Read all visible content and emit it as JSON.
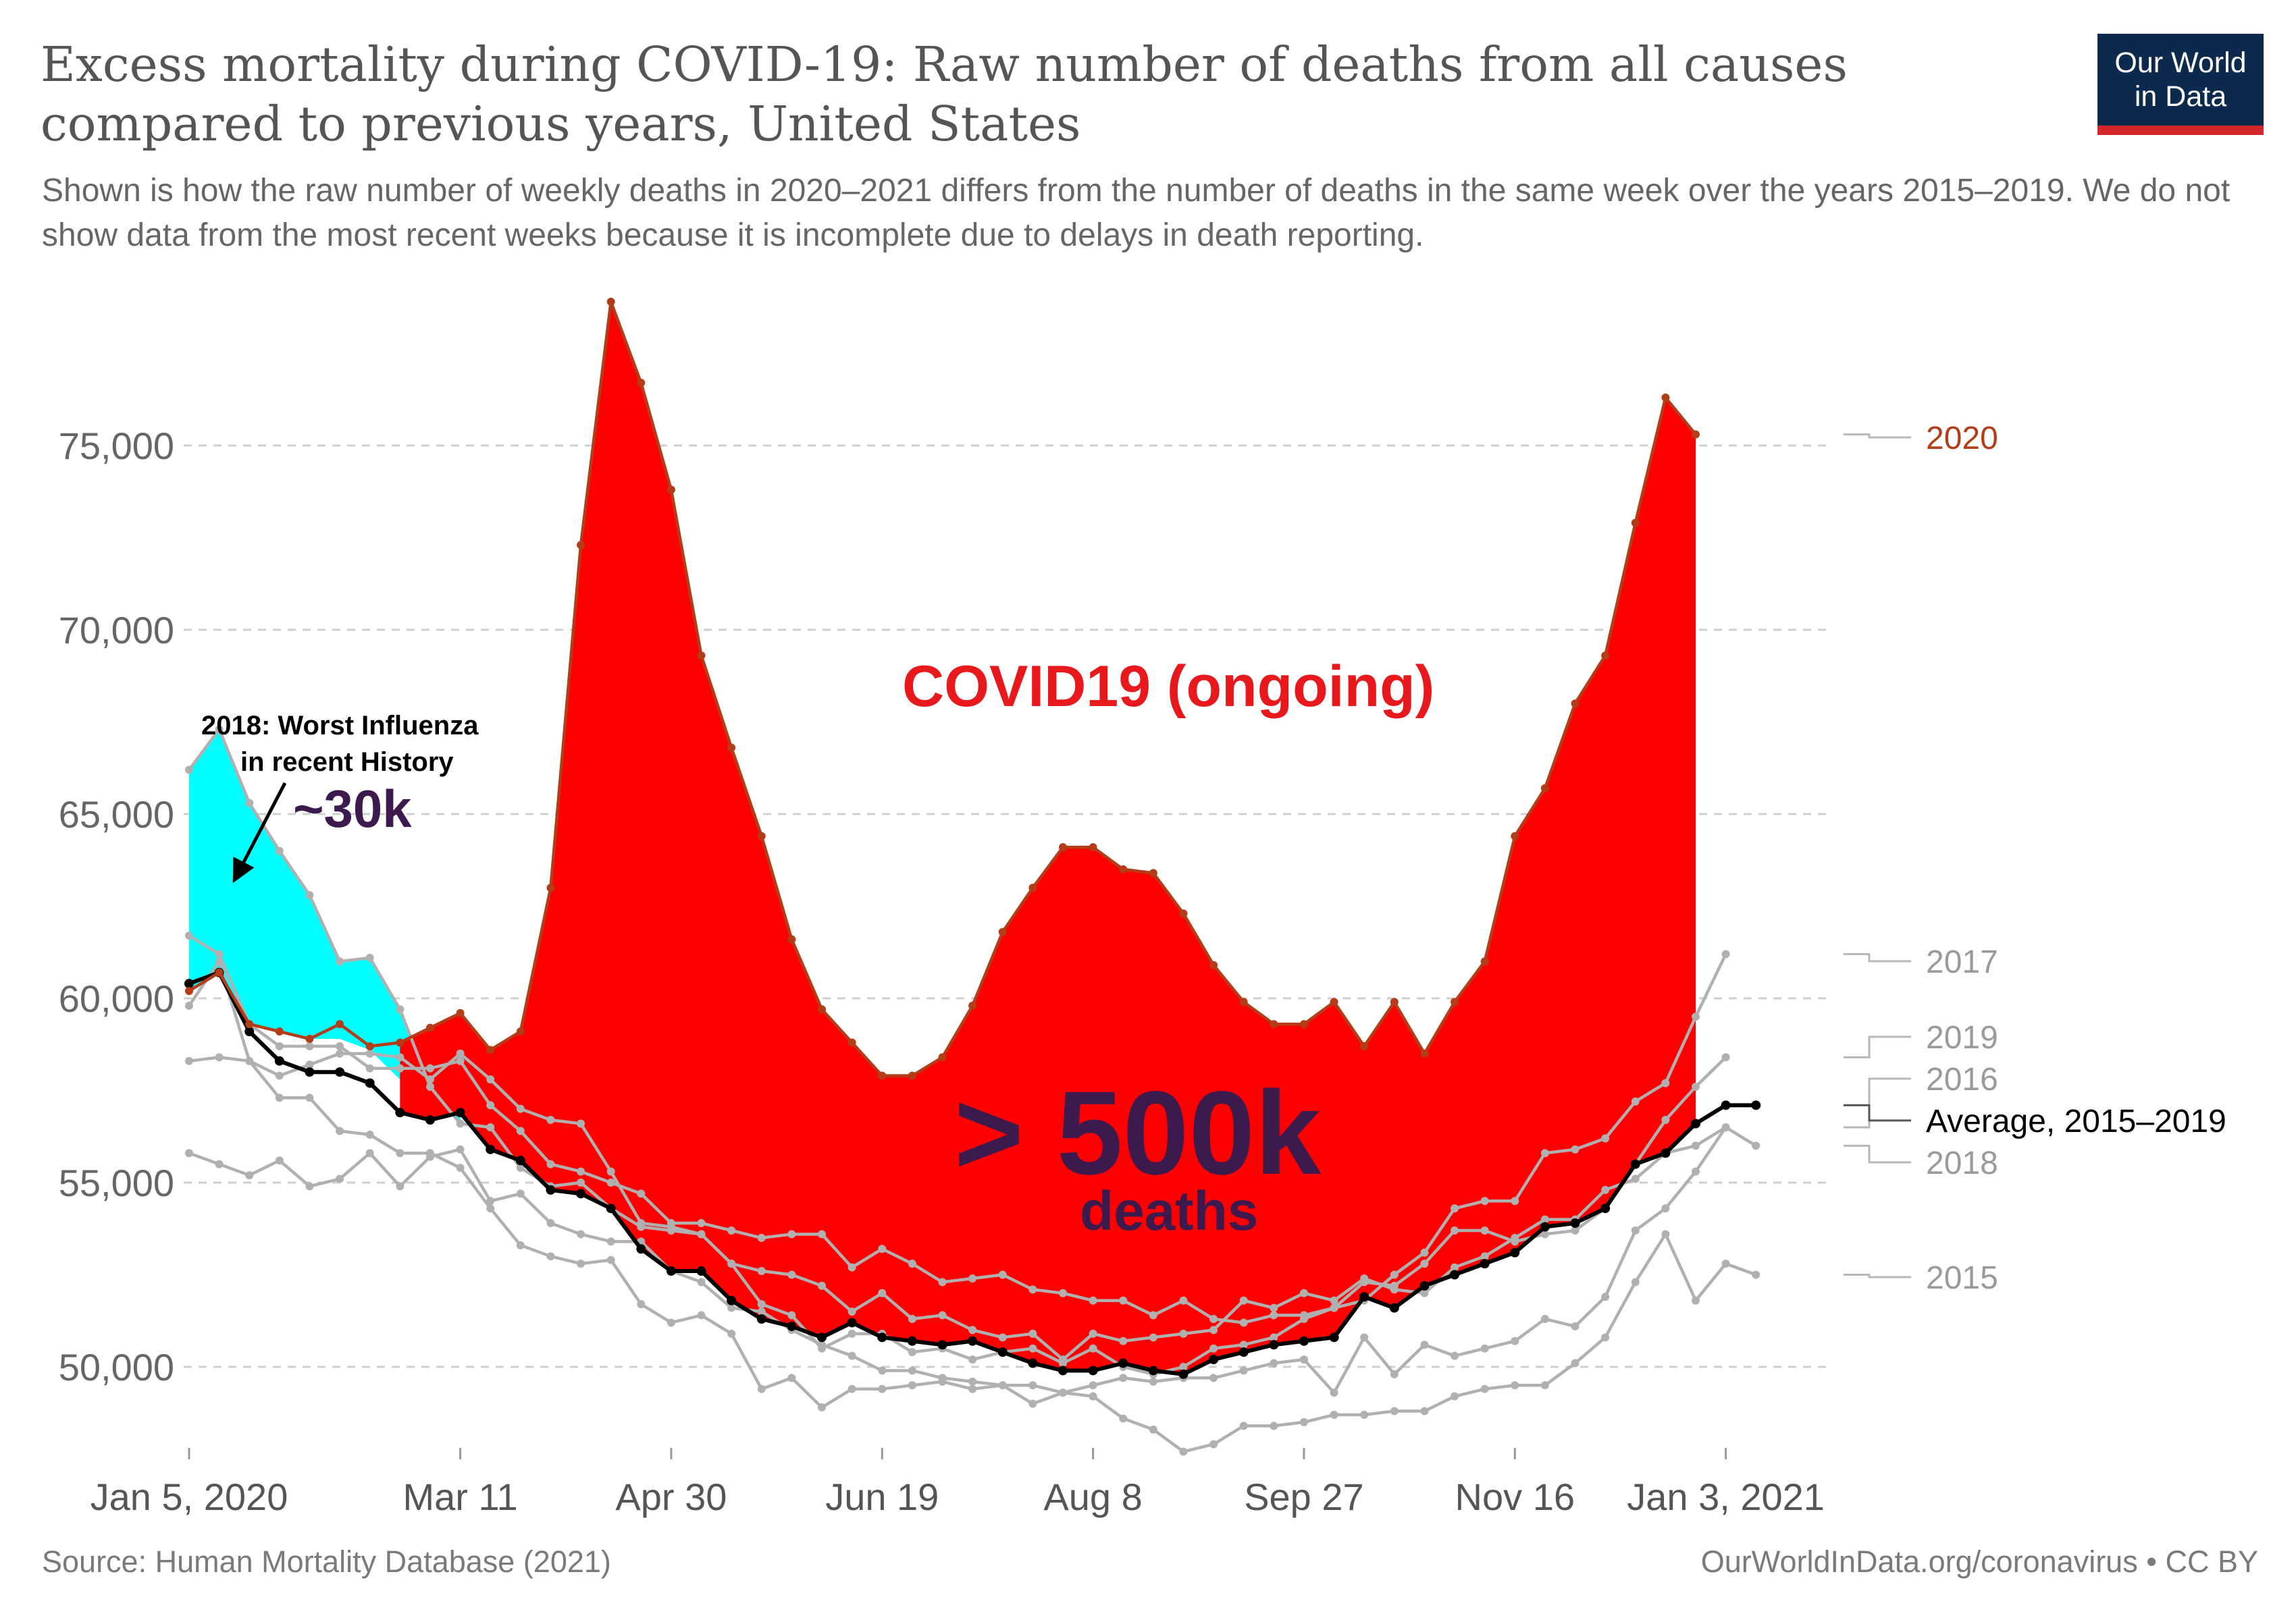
{
  "header": {
    "title": "Excess mortality during COVID-19: Raw number of deaths from all causes compared to previous years, United States",
    "subtitle": "Shown is how the raw number of weekly deaths in 2020–2021 differs from the number of deaths in the same week over the years 2015–2019. We do not show data from the most recent weeks because it is incomplete due to delays in death reporting.",
    "logo_line1": "Our World",
    "logo_line2": "in Data"
  },
  "footer": {
    "source": "Source: Human Mortality Database (2021)",
    "credit": "OurWorldInData.org/coronavirus • CC BY"
  },
  "colors": {
    "series_2020": "#b33d18",
    "other_years": "#b0b0b0",
    "average": "#000000",
    "excess_fill": "#ff0000",
    "flu_fill": "#00ffff",
    "big_label": "#3d1a4d",
    "logo_bg": "#0b2a4d",
    "logo_bar": "#d2262b"
  },
  "annotations": {
    "flu_title": "2018: Worst Influenza",
    "flu_title_2": "in recent History",
    "flu_amount": "~30k",
    "covid": "COVID19 (ongoing)",
    "excess_amount": "> 500k",
    "excess_unit": "deaths"
  },
  "chart_data": {
    "type": "line",
    "xlabel": "",
    "ylabel": "",
    "y_ticks": [
      50000,
      55000,
      60000,
      65000,
      70000,
      75000
    ],
    "y_tick_labels": [
      "50,000",
      "55,000",
      "60,000",
      "65,000",
      "70,000",
      "75,000"
    ],
    "x_tick_labels": [
      "Jan 5, 2020",
      "Mar 11",
      "Apr 30",
      "Jun 19",
      "Aug 8",
      "Sep 27",
      "Nov 16",
      "Jan 3, 2021"
    ],
    "x_tick_weeks": [
      1,
      10,
      17,
      24,
      31,
      38,
      45,
      52
    ],
    "x_weeks": [
      1,
      2,
      3,
      4,
      5,
      6,
      7,
      8,
      9,
      10,
      11,
      12,
      13,
      14,
      15,
      16,
      17,
      18,
      19,
      20,
      21,
      22,
      23,
      24,
      25,
      26,
      27,
      28,
      29,
      30,
      31,
      32,
      33,
      34,
      35,
      36,
      37,
      38,
      39,
      40,
      41,
      42,
      43,
      44,
      45,
      46,
      47,
      48,
      49,
      50,
      51,
      52,
      53
    ],
    "ylim": [
      48000,
      79000
    ],
    "grid": true,
    "legend": "right end labels",
    "series": [
      {
        "name": "2020",
        "role": "2020",
        "values": [
          60200,
          60700,
          59300,
          59100,
          58900,
          59300,
          58700,
          58800,
          59200,
          59600,
          58600,
          59100,
          63000,
          72300,
          78900,
          76700,
          73800,
          69300,
          66800,
          64400,
          61600,
          59700,
          58800,
          57900,
          57900,
          58400,
          59800,
          61800,
          63000,
          64100,
          64100,
          63500,
          63400,
          62300,
          60900,
          59900,
          59300,
          59300,
          59900,
          58700,
          59900,
          58500,
          59900,
          61000,
          64400,
          65700,
          68000,
          69300,
          72900,
          76300,
          75300
        ]
      },
      {
        "name": "2015",
        "role": "other",
        "values": [
          55800,
          55500,
          55200,
          55600,
          54900,
          55100,
          55800,
          54900,
          55700,
          55900,
          54500,
          54700,
          53900,
          53600,
          53400,
          53400,
          52600,
          52300,
          51600,
          51500,
          51000,
          50600,
          50300,
          49900,
          49900,
          49700,
          49600,
          49500,
          49500,
          49300,
          49200,
          48600,
          48300,
          47700,
          47900,
          48400,
          48400,
          48500,
          48700,
          48700,
          48800,
          48800,
          49200,
          49400,
          49500,
          49500,
          50100,
          50800,
          52300,
          53600,
          51800,
          52800,
          52500
        ]
      },
      {
        "name": "2016",
        "role": "other",
        "values": [
          59800,
          61000,
          58300,
          57300,
          57300,
          56400,
          56300,
          55800,
          55800,
          55400,
          54300,
          53300,
          53000,
          52800,
          52900,
          51700,
          51200,
          51400,
          50900,
          49400,
          49700,
          48900,
          49400,
          49400,
          49500,
          49600,
          49400,
          49500,
          49000,
          49300,
          49500,
          49700,
          49600,
          49700,
          49700,
          49900,
          50100,
          50200,
          49300,
          50800,
          49800,
          50600,
          50300,
          50500,
          50700,
          51300,
          51100,
          51900,
          53700,
          54300,
          55300,
          56500
        ]
      },
      {
        "name": "2017",
        "role": "other",
        "values": [
          61700,
          61200,
          59300,
          58700,
          58700,
          58700,
          58100,
          58100,
          58100,
          58300,
          57100,
          56400,
          55500,
          55300,
          55000,
          54700,
          53900,
          53900,
          53700,
          53500,
          53600,
          53600,
          52700,
          53200,
          52800,
          52300,
          52400,
          52500,
          52100,
          52000,
          51800,
          51800,
          51400,
          51800,
          51300,
          51200,
          51400,
          51400,
          51600,
          51800,
          52500,
          53100,
          54300,
          54500,
          54500,
          55800,
          55900,
          56200,
          57200,
          57700,
          59500,
          61200
        ]
      },
      {
        "name": "2018",
        "role": "other",
        "values": [
          66200,
          67300,
          65300,
          64000,
          62800,
          61000,
          61100,
          59700,
          57600,
          56600,
          56500,
          55400,
          54900,
          55000,
          54300,
          53800,
          53700,
          53600,
          52800,
          52600,
          52500,
          52200,
          51500,
          52000,
          51300,
          51400,
          51000,
          50800,
          50900,
          50200,
          50900,
          50700,
          50800,
          50900,
          51000,
          51800,
          51600,
          52000,
          51800,
          52400,
          52100,
          52000,
          52700,
          53000,
          53500,
          54000,
          54000,
          54800,
          55100,
          55800,
          56000,
          56500,
          56000
        ]
      },
      {
        "name": "2019",
        "role": "other",
        "values": [
          58300,
          58400,
          58300,
          57900,
          58200,
          58500,
          58500,
          58400,
          57800,
          58500,
          57800,
          57000,
          56700,
          56600,
          55300,
          53900,
          53800,
          53600,
          52800,
          51700,
          51400,
          50500,
          50900,
          50900,
          50400,
          50500,
          50200,
          50400,
          50500,
          50100,
          50500,
          50000,
          49800,
          50000,
          50500,
          50600,
          50800,
          51300,
          51600,
          52300,
          52200,
          52800,
          53700,
          53700,
          53400,
          53600,
          53700,
          54300,
          55500,
          56700,
          57600,
          58400
        ]
      },
      {
        "name": "Average, 2015–2019",
        "role": "average",
        "values": [
          60400,
          60700,
          59100,
          58300,
          58000,
          58000,
          57700,
          56900,
          56700,
          56900,
          55900,
          55600,
          54800,
          54700,
          54300,
          53200,
          52600,
          52600,
          51800,
          51300,
          51100,
          50800,
          51200,
          50800,
          50700,
          50600,
          50700,
          50400,
          50100,
          49900,
          49900,
          50100,
          49900,
          49800,
          50200,
          50400,
          50600,
          50700,
          50800,
          51900,
          51600,
          52200,
          52500,
          52800,
          53100,
          53800,
          53900,
          54300,
          55500,
          55800,
          56600,
          57100,
          57100
        ]
      }
    ],
    "area_2018_fill_weeks": [
      1,
      10
    ],
    "area_excess_fill_weeks": [
      8,
      51
    ],
    "end_labels": [
      {
        "text": "2020",
        "role": "2020"
      },
      {
        "text": "2017",
        "role": "other"
      },
      {
        "text": "2019",
        "role": "other"
      },
      {
        "text": "2016",
        "role": "other"
      },
      {
        "text": "Average, 2015–2019",
        "role": "average"
      },
      {
        "text": "2018",
        "role": "other"
      },
      {
        "text": "2015",
        "role": "other"
      }
    ]
  }
}
